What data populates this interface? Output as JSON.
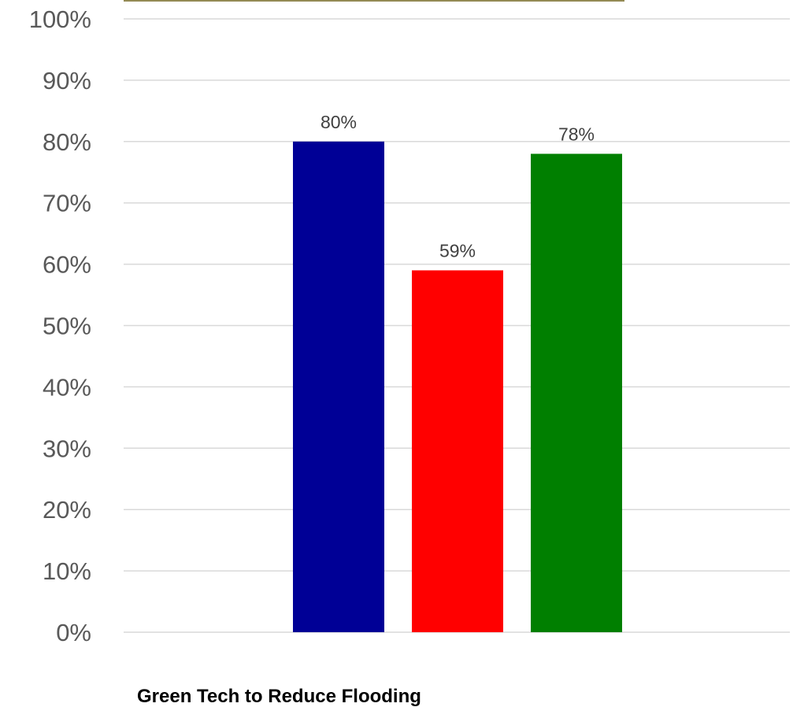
{
  "chart_data": {
    "type": "bar",
    "categories": [
      "Green Tech to Reduce Flooding"
    ],
    "series": [
      {
        "values": [
          80
        ],
        "color": "#000096"
      },
      {
        "values": [
          59
        ],
        "color": "#ff0000"
      },
      {
        "values": [
          78
        ],
        "color": "#007f00"
      }
    ],
    "data_labels": [
      "80%",
      "59%",
      "78%"
    ],
    "title": "",
    "xlabel": "",
    "ylabel": "",
    "ylim": [
      0,
      100
    ],
    "yticks": [
      "0%",
      "10%",
      "20%",
      "30%",
      "40%",
      "50%",
      "60%",
      "70%",
      "80%",
      "90%",
      "100%"
    ],
    "grid": true,
    "legend": "none",
    "grid_color": "#d9d9d9",
    "top_border_color": "#948a54"
  }
}
